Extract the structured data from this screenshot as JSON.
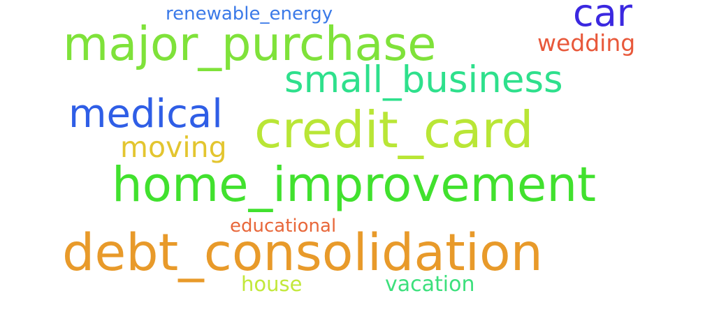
{
  "words": {
    "renewable_energy": {
      "text": "renewable_energy",
      "color": "#3b7ae8"
    },
    "car": {
      "text": "car",
      "color": "#3b28e0"
    },
    "major_purchase": {
      "text": "major_purchase",
      "color": "#7fe23a"
    },
    "wedding": {
      "text": "wedding",
      "color": "#e8583a"
    },
    "small_business": {
      "text": "small_business",
      "color": "#2ee08c"
    },
    "medical": {
      "text": "medical",
      "color": "#2f5ee6"
    },
    "credit_card": {
      "text": "credit_card",
      "color": "#b9e636"
    },
    "moving": {
      "text": "moving",
      "color": "#e3c52f"
    },
    "home_improvement": {
      "text": "home_improvement",
      "color": "#41e12e"
    },
    "educational": {
      "text": "educational",
      "color": "#e8673a"
    },
    "debt_consolidation": {
      "text": "debt_consolidation",
      "color": "#e89a2a"
    },
    "house": {
      "text": "house",
      "color": "#c2e83a"
    },
    "vacation": {
      "text": "vacation",
      "color": "#3ce07c"
    }
  }
}
